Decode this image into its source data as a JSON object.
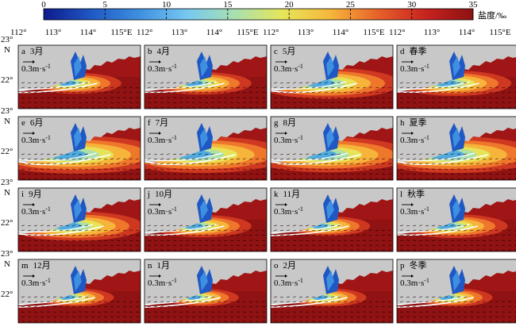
{
  "colorbar": {
    "ticks": [
      "0",
      "5",
      "10",
      "15",
      "20",
      "25",
      "30",
      "35"
    ],
    "values": [
      0,
      5,
      10,
      15,
      20,
      25,
      30,
      35
    ],
    "label": "盐度/‰",
    "colors": [
      "#0d1a8c",
      "#1f58c4",
      "#3e8fe0",
      "#76c8f2",
      "#a8e0b0",
      "#e6e65a",
      "#f5b73c",
      "#e8612a",
      "#c8231f",
      "#8c1212"
    ]
  },
  "axes": {
    "lon_ticks": [
      "112°",
      "113°",
      "114°",
      "115°E"
    ],
    "lat_ticks": [
      "23°",
      "N",
      "22°"
    ]
  },
  "scale_arrow": {
    "label": "0.3m·s",
    "exp": "-1"
  },
  "panels": [
    {
      "letter": "a",
      "title": "3月",
      "plume": 0.4
    },
    {
      "letter": "b",
      "title": "4月",
      "plume": 0.45
    },
    {
      "letter": "c",
      "title": "5月",
      "plume": 0.75
    },
    {
      "letter": "d",
      "title": "春季",
      "plume": 0.55
    },
    {
      "letter": "e",
      "title": "6月",
      "plume": 1.0
    },
    {
      "letter": "f",
      "title": "7月",
      "plume": 0.95
    },
    {
      "letter": "g",
      "title": "8月",
      "plume": 0.9
    },
    {
      "letter": "h",
      "title": "夏季",
      "plume": 0.95
    },
    {
      "letter": "i",
      "title": "9月",
      "plume": 0.7
    },
    {
      "letter": "j",
      "title": "10月",
      "plume": 0.45
    },
    {
      "letter": "k",
      "title": "11月",
      "plume": 0.35
    },
    {
      "letter": "l",
      "title": "秋季",
      "plume": 0.5
    },
    {
      "letter": "m",
      "title": "12月",
      "plume": 0.3
    },
    {
      "letter": "n",
      "title": "1月",
      "plume": 0.28
    },
    {
      "letter": "o",
      "title": "2月",
      "plume": 0.3
    },
    {
      "letter": "p",
      "title": "冬季",
      "plume": 0.3
    }
  ]
}
